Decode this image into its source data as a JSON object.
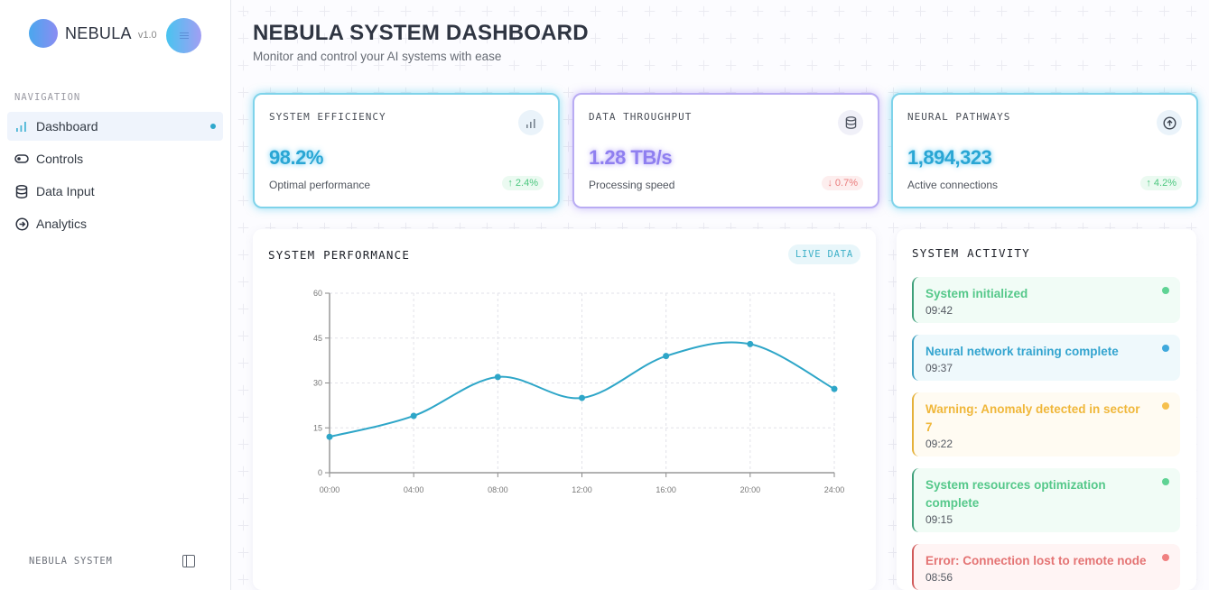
{
  "sidebar": {
    "brand": {
      "name": "NEBULA",
      "version": "v1.0"
    },
    "menu_icon": "hamburger-icon",
    "nav_label": "NAVIGATION",
    "items": [
      {
        "label": "Dashboard",
        "icon": "bar-chart-icon",
        "active": true
      },
      {
        "label": "Controls",
        "icon": "toggle-icon",
        "active": false
      },
      {
        "label": "Data Input",
        "icon": "database-icon",
        "active": false
      },
      {
        "label": "Analytics",
        "icon": "arrow-circle-right-icon",
        "active": false
      }
    ],
    "footer_label": "NEBULA SYSTEM",
    "collapse_icon": "sidebar-toggle-icon"
  },
  "header": {
    "title": "NEBULA SYSTEM DASHBOARD",
    "subtitle": "Monitor and control your AI systems with ease"
  },
  "stats": [
    {
      "title": "SYSTEM EFFICIENCY",
      "value": "98.2%",
      "description": "Optimal performance",
      "delta": "↑ 2.4%",
      "trend": "up",
      "icon": "bar-chart-icon",
      "accent": "#2aa6d4"
    },
    {
      "title": "DATA THROUGHPUT",
      "value": "1.28 TB/s",
      "description": "Processing speed",
      "delta": "↓ 0.7%",
      "trend": "down",
      "icon": "database-icon",
      "accent": "#8f7ff0"
    },
    {
      "title": "NEURAL PATHWAYS",
      "value": "1,894,323",
      "description": "Active connections",
      "delta": "↑ 4.2%",
      "trend": "up",
      "icon": "arrow-circle-up-icon",
      "accent": "#2aa6d4"
    }
  ],
  "performance": {
    "title": "SYSTEM PERFORMANCE",
    "badge": "LIVE DATA"
  },
  "chart_data": {
    "type": "line",
    "title": "SYSTEM PERFORMANCE",
    "xlabel": "",
    "ylabel": "",
    "x": [
      "00:00",
      "04:00",
      "08:00",
      "12:00",
      "16:00",
      "20:00",
      "24:00"
    ],
    "series": [
      {
        "name": "performance",
        "values": [
          12,
          19,
          32,
          25,
          39,
          43,
          28
        ],
        "color": "#2ea6c8"
      }
    ],
    "ylim": [
      0,
      60
    ],
    "yticks": [
      0,
      15,
      30,
      45,
      60
    ],
    "grid": true,
    "curve": "smooth",
    "legend": "none"
  },
  "activity": {
    "title": "SYSTEM ACTIVITY",
    "items": [
      {
        "message": "System initialized",
        "time": "09:42",
        "type": "success"
      },
      {
        "message": "Neural network training complete",
        "time": "09:37",
        "type": "info"
      },
      {
        "message": "Warning: Anomaly detected in sector 7",
        "time": "09:22",
        "type": "warning"
      },
      {
        "message": "System resources optimization complete",
        "time": "09:15",
        "type": "success"
      },
      {
        "message": "Error: Connection lost to remote node",
        "time": "08:56",
        "type": "error"
      }
    ]
  }
}
